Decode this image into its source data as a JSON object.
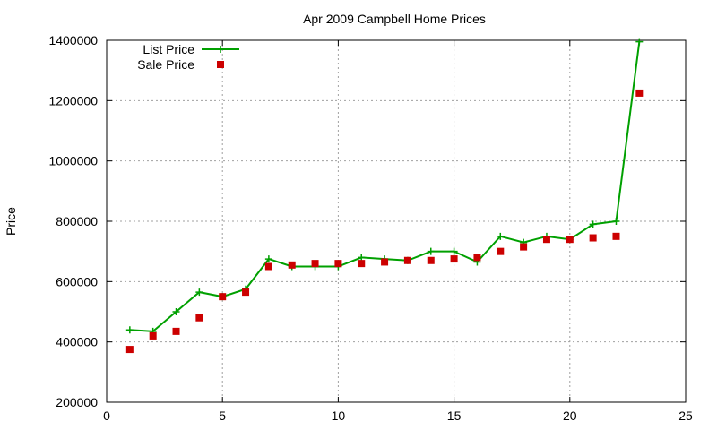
{
  "chart_data": {
    "type": "line",
    "title": "Apr 2009 Campbell Home Prices",
    "xlabel": "",
    "ylabel": "Price",
    "xlim": [
      0,
      25
    ],
    "ylim": [
      200000,
      1400000
    ],
    "xticks": [
      0,
      5,
      10,
      15,
      20,
      25
    ],
    "yticks": [
      200000,
      400000,
      600000,
      800000,
      1000000,
      1200000,
      1400000
    ],
    "grid": true,
    "legend_position": "top-left",
    "series": [
      {
        "name": "List Price",
        "style": "linespoints",
        "color": "#00a000",
        "x": [
          1,
          2,
          3,
          4,
          5,
          6,
          7,
          8,
          9,
          10,
          11,
          12,
          13,
          14,
          15,
          16,
          17,
          18,
          19,
          20,
          21,
          22,
          23
        ],
        "values": [
          440000,
          435000,
          500000,
          565000,
          550000,
          575000,
          675000,
          650000,
          650000,
          650000,
          680000,
          675000,
          670000,
          700000,
          700000,
          665000,
          750000,
          730000,
          750000,
          740000,
          790000,
          800000,
          1395000
        ]
      },
      {
        "name": "Sale Price",
        "style": "points",
        "color": "#cc0000",
        "x": [
          1,
          2,
          3,
          4,
          5,
          6,
          7,
          8,
          9,
          10,
          11,
          12,
          13,
          14,
          15,
          16,
          17,
          18,
          19,
          20,
          21,
          22,
          23
        ],
        "values": [
          375000,
          420000,
          435000,
          480000,
          550000,
          565000,
          650000,
          655000,
          660000,
          660000,
          660000,
          665000,
          670000,
          670000,
          675000,
          680000,
          700000,
          715000,
          740000,
          740000,
          745000,
          750000,
          1225000
        ]
      }
    ]
  }
}
